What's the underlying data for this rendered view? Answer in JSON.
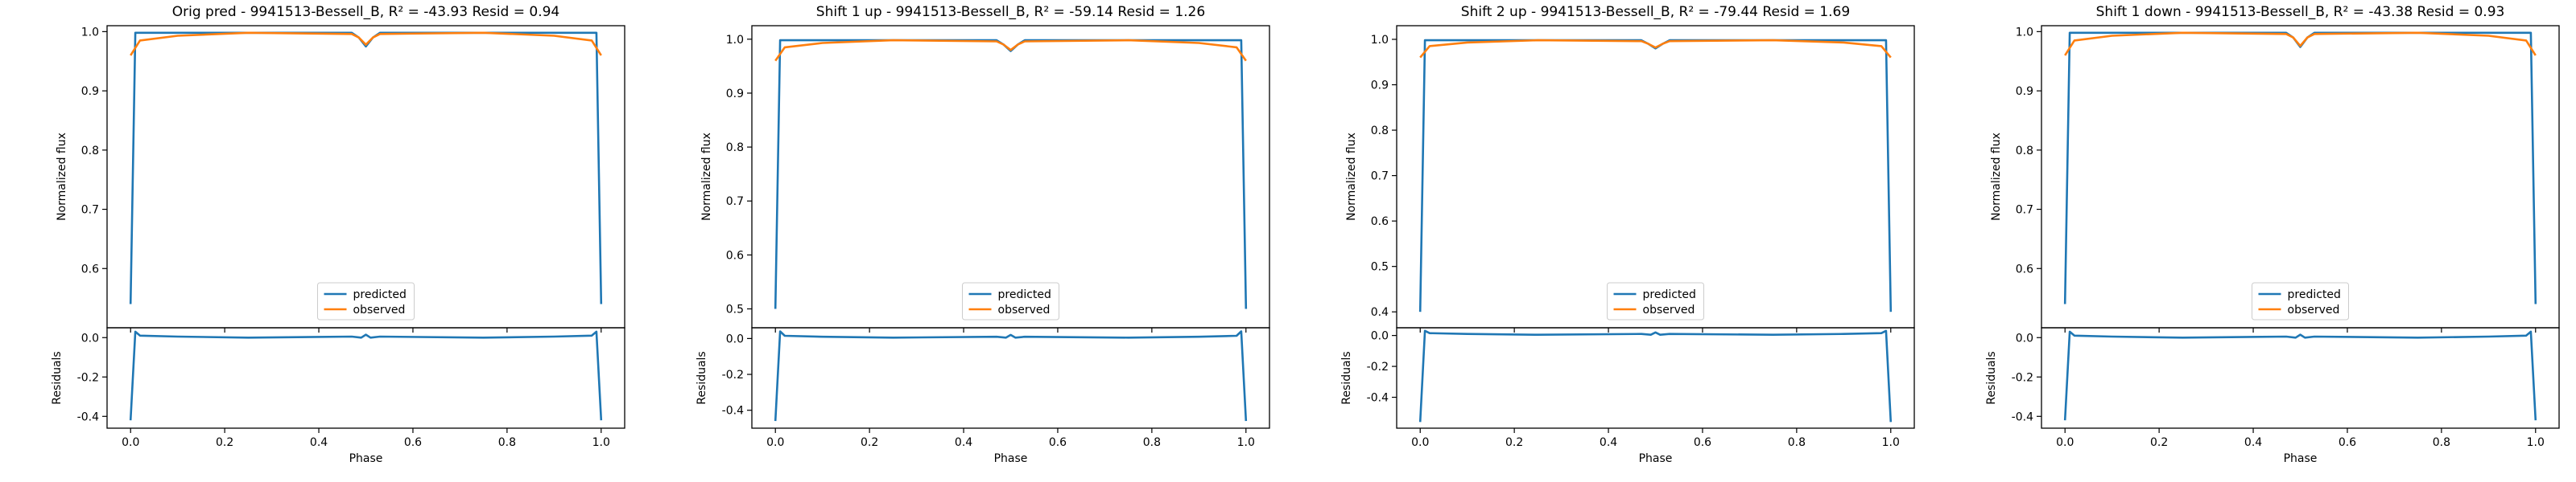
{
  "chart_data": [
    {
      "type": "line",
      "title": "Orig pred - 9941513-Bessell_B, R² = -43.93 Resid = 0.94",
      "xlabel": "Phase",
      "ylabel": "Normalized flux",
      "ylabel_resid": "Residuals",
      "xlim": [
        -0.05,
        1.05
      ],
      "ylim": [
        0.5,
        1.01
      ],
      "yticks": [
        0.6,
        0.7,
        0.8,
        0.9,
        1.0
      ],
      "ylim_resid": [
        -0.46,
        0.05
      ],
      "yticks_resid": [
        -0.4,
        -0.2,
        0.0
      ],
      "xticks": [
        0.0,
        0.2,
        0.4,
        0.6,
        0.8,
        1.0
      ],
      "legend_position": "lower center",
      "grid": false,
      "series": [
        {
          "name": "predicted",
          "color": "#1f77b4",
          "x": [
            0.0,
            0.01,
            0.02,
            0.25,
            0.47,
            0.485,
            0.5,
            0.515,
            0.53,
            0.75,
            0.98,
            0.99,
            1.0
          ],
          "y": [
            0.54,
            0.998,
            0.998,
            0.998,
            0.998,
            0.99,
            0.975,
            0.99,
            0.998,
            0.998,
            0.998,
            0.998,
            0.54
          ]
        },
        {
          "name": "observed",
          "color": "#ff7f0e",
          "x": [
            0.0,
            0.02,
            0.1,
            0.25,
            0.47,
            0.485,
            0.5,
            0.515,
            0.53,
            0.75,
            0.9,
            0.98,
            1.0
          ],
          "y": [
            0.96,
            0.985,
            0.993,
            0.998,
            0.996,
            0.99,
            0.978,
            0.99,
            0.996,
            0.998,
            0.993,
            0.985,
            0.96
          ]
        }
      ],
      "residuals": {
        "x": [
          0.0,
          0.01,
          0.02,
          0.1,
          0.25,
          0.47,
          0.49,
          0.5,
          0.51,
          0.53,
          0.75,
          0.9,
          0.98,
          0.99,
          1.0
        ],
        "y": [
          -0.42,
          0.03,
          0.01,
          0.005,
          0.0,
          0.005,
          0.0,
          0.015,
          0.0,
          0.005,
          0.0,
          0.005,
          0.01,
          0.03,
          -0.42
        ]
      }
    },
    {
      "type": "line",
      "title": "Shift 1 up - 9941513-Bessell_B, R² = -59.14 Resid = 1.26",
      "xlabel": "Phase",
      "ylabel": "Normalized flux",
      "ylabel_resid": "Residuals",
      "xlim": [
        -0.05,
        1.05
      ],
      "ylim": [
        0.465,
        1.025
      ],
      "yticks": [
        0.5,
        0.6,
        0.7,
        0.8,
        0.9,
        1.0
      ],
      "ylim_resid": [
        -0.5,
        0.06
      ],
      "yticks_resid": [
        -0.4,
        -0.2,
        0.0
      ],
      "xticks": [
        0.0,
        0.2,
        0.4,
        0.6,
        0.8,
        1.0
      ],
      "legend_position": "lower center",
      "grid": false,
      "series": [
        {
          "name": "predicted",
          "color": "#1f77b4",
          "x": [
            0.0,
            0.01,
            0.02,
            0.25,
            0.47,
            0.485,
            0.5,
            0.515,
            0.53,
            0.75,
            0.98,
            0.99,
            1.0
          ],
          "y": [
            0.5,
            0.998,
            0.998,
            0.998,
            0.998,
            0.99,
            0.978,
            0.99,
            0.998,
            0.998,
            0.998,
            0.998,
            0.5
          ]
        },
        {
          "name": "observed",
          "color": "#ff7f0e",
          "x": [
            0.0,
            0.02,
            0.1,
            0.25,
            0.47,
            0.485,
            0.5,
            0.515,
            0.53,
            0.75,
            0.9,
            0.98,
            1.0
          ],
          "y": [
            0.96,
            0.985,
            0.993,
            0.998,
            0.996,
            0.99,
            0.98,
            0.99,
            0.996,
            0.998,
            0.993,
            0.985,
            0.96
          ]
        }
      ],
      "residuals": {
        "x": [
          0.0,
          0.01,
          0.02,
          0.1,
          0.25,
          0.47,
          0.49,
          0.5,
          0.51,
          0.53,
          0.75,
          0.9,
          0.98,
          0.99,
          1.0
        ],
        "y": [
          -0.46,
          0.04,
          0.015,
          0.01,
          0.005,
          0.01,
          0.005,
          0.02,
          0.005,
          0.01,
          0.005,
          0.01,
          0.015,
          0.04,
          -0.46
        ]
      }
    },
    {
      "type": "line",
      "title": "Shift 2 up - 9941513-Bessell_B, R² = -79.44 Resid = 1.69",
      "xlabel": "Phase",
      "ylabel": "Normalized flux",
      "ylabel_resid": "Residuals",
      "xlim": [
        -0.05,
        1.05
      ],
      "ylim": [
        0.365,
        1.03
      ],
      "yticks": [
        0.4,
        0.5,
        0.6,
        0.7,
        0.8,
        0.9,
        1.0
      ],
      "ylim_resid": [
        -0.6,
        0.05
      ],
      "yticks_resid": [
        -0.4,
        -0.2,
        0.0
      ],
      "xticks": [
        0.0,
        0.2,
        0.4,
        0.6,
        0.8,
        1.0
      ],
      "legend_position": "lower center",
      "grid": false,
      "series": [
        {
          "name": "predicted",
          "color": "#1f77b4",
          "x": [
            0.0,
            0.01,
            0.02,
            0.25,
            0.47,
            0.485,
            0.5,
            0.515,
            0.53,
            0.75,
            0.98,
            0.99,
            1.0
          ],
          "y": [
            0.4,
            0.998,
            0.998,
            0.998,
            0.998,
            0.99,
            0.98,
            0.99,
            0.998,
            0.998,
            0.998,
            0.998,
            0.4
          ]
        },
        {
          "name": "observed",
          "color": "#ff7f0e",
          "x": [
            0.0,
            0.02,
            0.1,
            0.25,
            0.47,
            0.485,
            0.5,
            0.515,
            0.53,
            0.75,
            0.9,
            0.98,
            1.0
          ],
          "y": [
            0.96,
            0.985,
            0.993,
            0.998,
            0.996,
            0.99,
            0.982,
            0.99,
            0.996,
            0.998,
            0.993,
            0.985,
            0.96
          ]
        }
      ],
      "residuals": {
        "x": [
          0.0,
          0.01,
          0.02,
          0.1,
          0.25,
          0.47,
          0.49,
          0.5,
          0.51,
          0.53,
          0.75,
          0.9,
          0.98,
          0.99,
          1.0
        ],
        "y": [
          -0.56,
          0.03,
          0.015,
          0.01,
          0.005,
          0.01,
          0.005,
          0.02,
          0.005,
          0.01,
          0.005,
          0.01,
          0.015,
          0.03,
          -0.56
        ]
      }
    },
    {
      "type": "line",
      "title": "Shift 1 down - 9941513-Bessell_B, R² = -43.38 Resid = 0.93",
      "xlabel": "Phase",
      "ylabel": "Normalized flux",
      "ylabel_resid": "Residuals",
      "xlim": [
        -0.05,
        1.05
      ],
      "ylim": [
        0.5,
        1.01
      ],
      "yticks": [
        0.6,
        0.7,
        0.8,
        0.9,
        1.0
      ],
      "ylim_resid": [
        -0.46,
        0.05
      ],
      "yticks_resid": [
        -0.4,
        -0.2,
        0.0
      ],
      "xticks": [
        0.0,
        0.2,
        0.4,
        0.6,
        0.8,
        1.0
      ],
      "legend_position": "lower center",
      "grid": false,
      "series": [
        {
          "name": "predicted",
          "color": "#1f77b4",
          "x": [
            0.0,
            0.01,
            0.02,
            0.25,
            0.47,
            0.485,
            0.5,
            0.515,
            0.53,
            0.75,
            0.98,
            0.99,
            1.0
          ],
          "y": [
            0.54,
            0.998,
            0.998,
            0.998,
            0.998,
            0.99,
            0.974,
            0.99,
            0.998,
            0.998,
            0.998,
            0.998,
            0.54
          ]
        },
        {
          "name": "observed",
          "color": "#ff7f0e",
          "x": [
            0.0,
            0.02,
            0.1,
            0.25,
            0.47,
            0.485,
            0.5,
            0.515,
            0.53,
            0.75,
            0.9,
            0.98,
            1.0
          ],
          "y": [
            0.96,
            0.985,
            0.993,
            0.998,
            0.996,
            0.99,
            0.976,
            0.99,
            0.996,
            0.998,
            0.993,
            0.985,
            0.96
          ]
        }
      ],
      "residuals": {
        "x": [
          0.0,
          0.01,
          0.02,
          0.1,
          0.25,
          0.47,
          0.49,
          0.5,
          0.51,
          0.53,
          0.75,
          0.9,
          0.98,
          0.99,
          1.0
        ],
        "y": [
          -0.42,
          0.03,
          0.01,
          0.005,
          0.0,
          0.005,
          0.0,
          0.015,
          0.0,
          0.005,
          0.0,
          0.005,
          0.01,
          0.03,
          -0.42
        ]
      }
    }
  ]
}
